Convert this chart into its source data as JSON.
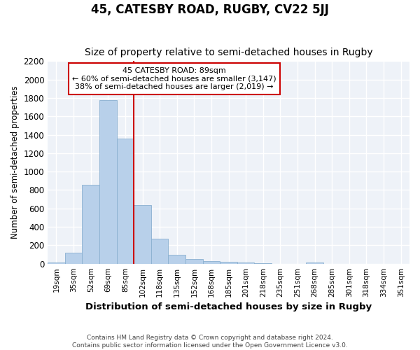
{
  "title": "45, CATESBY ROAD, RUGBY, CV22 5JJ",
  "subtitle": "Size of property relative to semi-detached houses in Rugby",
  "xlabel": "Distribution of semi-detached houses by size in Rugby",
  "ylabel": "Number of semi-detached properties",
  "footer_line1": "Contains HM Land Registry data © Crown copyright and database right 2024.",
  "footer_line2": "Contains public sector information licensed under the Open Government Licence v3.0.",
  "categories": [
    "19sqm",
    "35sqm",
    "52sqm",
    "69sqm",
    "85sqm",
    "102sqm",
    "118sqm",
    "135sqm",
    "152sqm",
    "168sqm",
    "185sqm",
    "201sqm",
    "218sqm",
    "235sqm",
    "251sqm",
    "268sqm",
    "285sqm",
    "301sqm",
    "318sqm",
    "334sqm",
    "351sqm"
  ],
  "values": [
    10,
    120,
    860,
    1780,
    1360,
    640,
    270,
    100,
    50,
    30,
    20,
    15,
    5,
    0,
    0,
    10,
    0,
    0,
    0,
    0,
    0
  ],
  "bar_color": "#b8d0ea",
  "bar_edge_color": "#8ab0d0",
  "property_line_label": "45 CATESBY ROAD: 89sqm",
  "pct_smaller": 60,
  "pct_larger": 38,
  "count_smaller": 3147,
  "count_larger": 2019,
  "annotation_box_color": "#ffffff",
  "annotation_box_edge_color": "#cc0000",
  "line_color": "#cc0000",
  "ylim": [
    0,
    2200
  ],
  "yticks": [
    0,
    200,
    400,
    600,
    800,
    1000,
    1200,
    1400,
    1600,
    1800,
    2000,
    2200
  ],
  "background_color": "#eef2f8",
  "grid_color": "#ffffff",
  "title_fontsize": 12,
  "subtitle_fontsize": 10
}
